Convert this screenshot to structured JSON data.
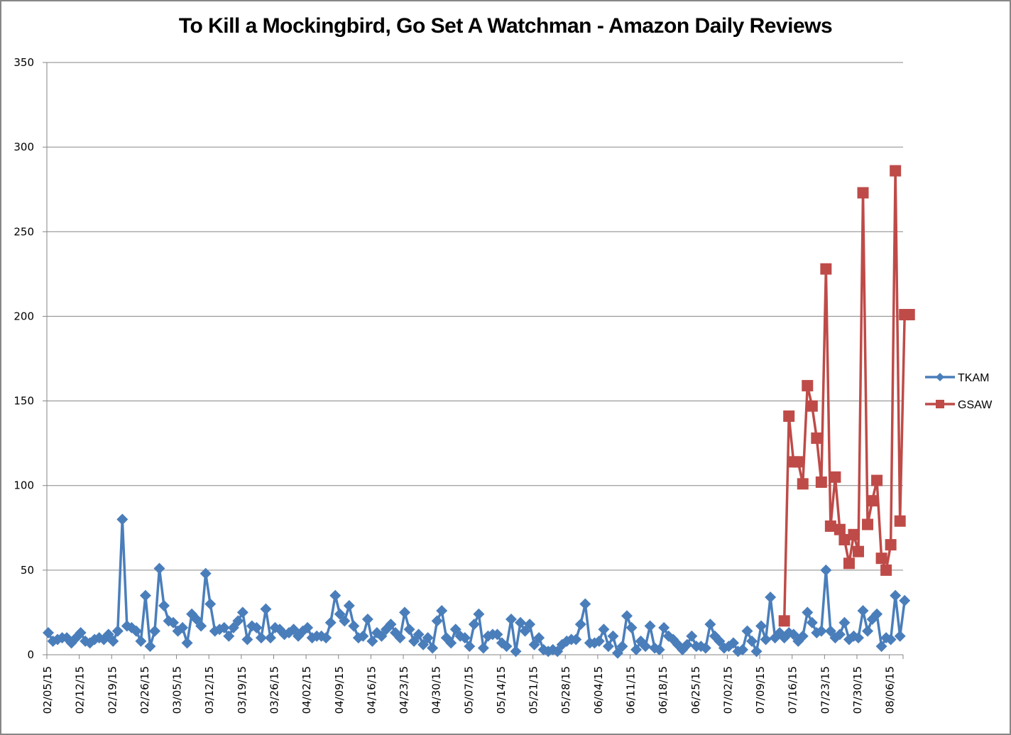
{
  "chart_data": {
    "type": "line",
    "title": "To Kill a Mockingbird, Go Set A Watchman - Amazon Daily Reviews",
    "xlabel": "",
    "ylabel": "",
    "ylim": [
      0,
      350
    ],
    "yticks": [
      0,
      50,
      100,
      150,
      200,
      250,
      300,
      350
    ],
    "grid": true,
    "legend": "right",
    "start_date": "02/05/15",
    "xtick_labels": [
      "02/05/15",
      "02/12/15",
      "02/19/15",
      "02/26/15",
      "03/05/15",
      "03/12/15",
      "03/19/15",
      "03/26/15",
      "04/02/15",
      "04/09/15",
      "04/16/15",
      "04/23/15",
      "04/30/15",
      "05/07/15",
      "05/14/15",
      "05/21/15",
      "05/28/15",
      "06/04/15",
      "06/11/15",
      "06/18/15",
      "06/25/15",
      "07/02/15",
      "07/09/15",
      "07/16/15",
      "07/23/15",
      "07/30/15",
      "08/06/15"
    ],
    "xtick_interval_days": 7,
    "total_days": 187,
    "series": [
      {
        "name": "TKAM",
        "color": "#4a7ebb",
        "marker": "diamond",
        "start_index": 0,
        "values": [
          13,
          8,
          9,
          10,
          10,
          7,
          10,
          13,
          8,
          7,
          9,
          10,
          9,
          12,
          8,
          14,
          80,
          17,
          16,
          14,
          8,
          35,
          5,
          14,
          51,
          29,
          20,
          19,
          14,
          16,
          7,
          24,
          21,
          17,
          48,
          30,
          14,
          15,
          16,
          11,
          16,
          20,
          25,
          9,
          17,
          16,
          10,
          27,
          10,
          16,
          15,
          12,
          13,
          15,
          11,
          14,
          16,
          10,
          11,
          11,
          10,
          19,
          35,
          24,
          20,
          29,
          17,
          10,
          11,
          21,
          8,
          13,
          11,
          15,
          18,
          13,
          10,
          25,
          15,
          8,
          12,
          6,
          10,
          4,
          20,
          26,
          10,
          7,
          15,
          11,
          10,
          5,
          18,
          24,
          4,
          11,
          12,
          12,
          7,
          5,
          21,
          2,
          19,
          14,
          18,
          6,
          10,
          3,
          2,
          3,
          2,
          6,
          8,
          9,
          9,
          18,
          30,
          7,
          7,
          8,
          15,
          5,
          11,
          1,
          5,
          23,
          16,
          3,
          8,
          5,
          17,
          4,
          3,
          16,
          11,
          9,
          6,
          3,
          6,
          11,
          5,
          5,
          4,
          18,
          11,
          8,
          4,
          5,
          7,
          2,
          3,
          14,
          8,
          2,
          17,
          9,
          34,
          10,
          13,
          10,
          13,
          12,
          8,
          11,
          25,
          19,
          13,
          14,
          50,
          14,
          10,
          12,
          19,
          9,
          11,
          10,
          26,
          14,
          21,
          24,
          5,
          10,
          9,
          35,
          11,
          32
        ]
      },
      {
        "name": "GSAW",
        "color": "#be4b48",
        "marker": "square",
        "start_index": 159,
        "values": [
          20,
          141,
          114,
          114,
          101,
          159,
          147,
          128,
          102,
          228,
          76,
          105,
          74,
          68,
          54,
          71,
          61,
          273,
          77,
          91,
          103,
          57,
          50,
          65,
          286,
          79,
          201,
          201
        ]
      }
    ]
  }
}
